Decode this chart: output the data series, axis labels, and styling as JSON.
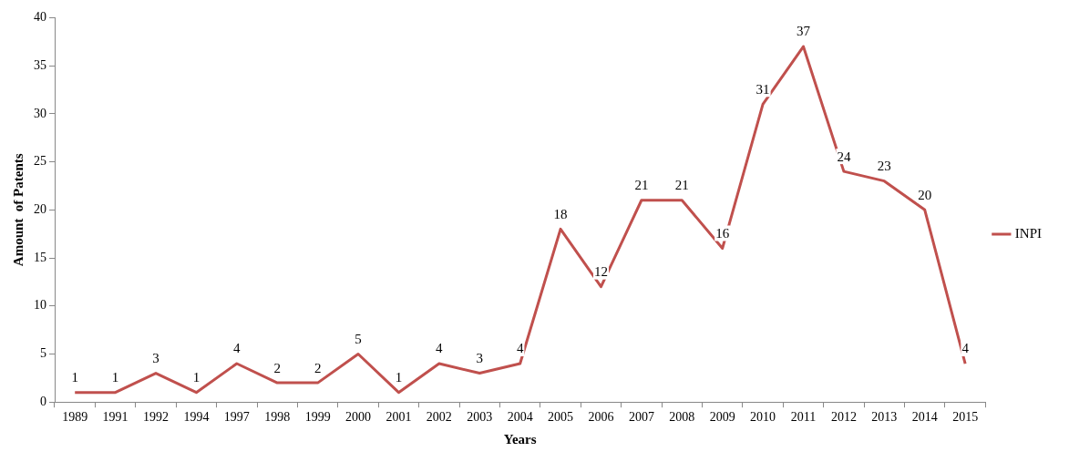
{
  "chart_data": {
    "type": "line",
    "xlabel": "Years",
    "ylabel": "Amount  of Patents",
    "categories": [
      "1989",
      "1991",
      "1992",
      "1994",
      "1997",
      "1998",
      "1999",
      "2000",
      "2001",
      "2002",
      "2003",
      "2004",
      "2005",
      "2006",
      "2007",
      "2008",
      "2009",
      "2010",
      "2011",
      "2012",
      "2013",
      "2014",
      "2015"
    ],
    "series": [
      {
        "name": "INPI",
        "color": "#c0504d",
        "values": [
          1,
          1,
          3,
          1,
          4,
          2,
          2,
          5,
          1,
          4,
          3,
          4,
          18,
          12,
          21,
          21,
          16,
          31,
          37,
          24,
          23,
          20,
          4
        ]
      }
    ],
    "ylim": [
      0,
      40
    ],
    "yticks": [
      0,
      5,
      10,
      15,
      20,
      25,
      30,
      35,
      40
    ],
    "grid": false,
    "legend": "right",
    "data_labels": true,
    "marker": "none",
    "line_style": "solid"
  }
}
